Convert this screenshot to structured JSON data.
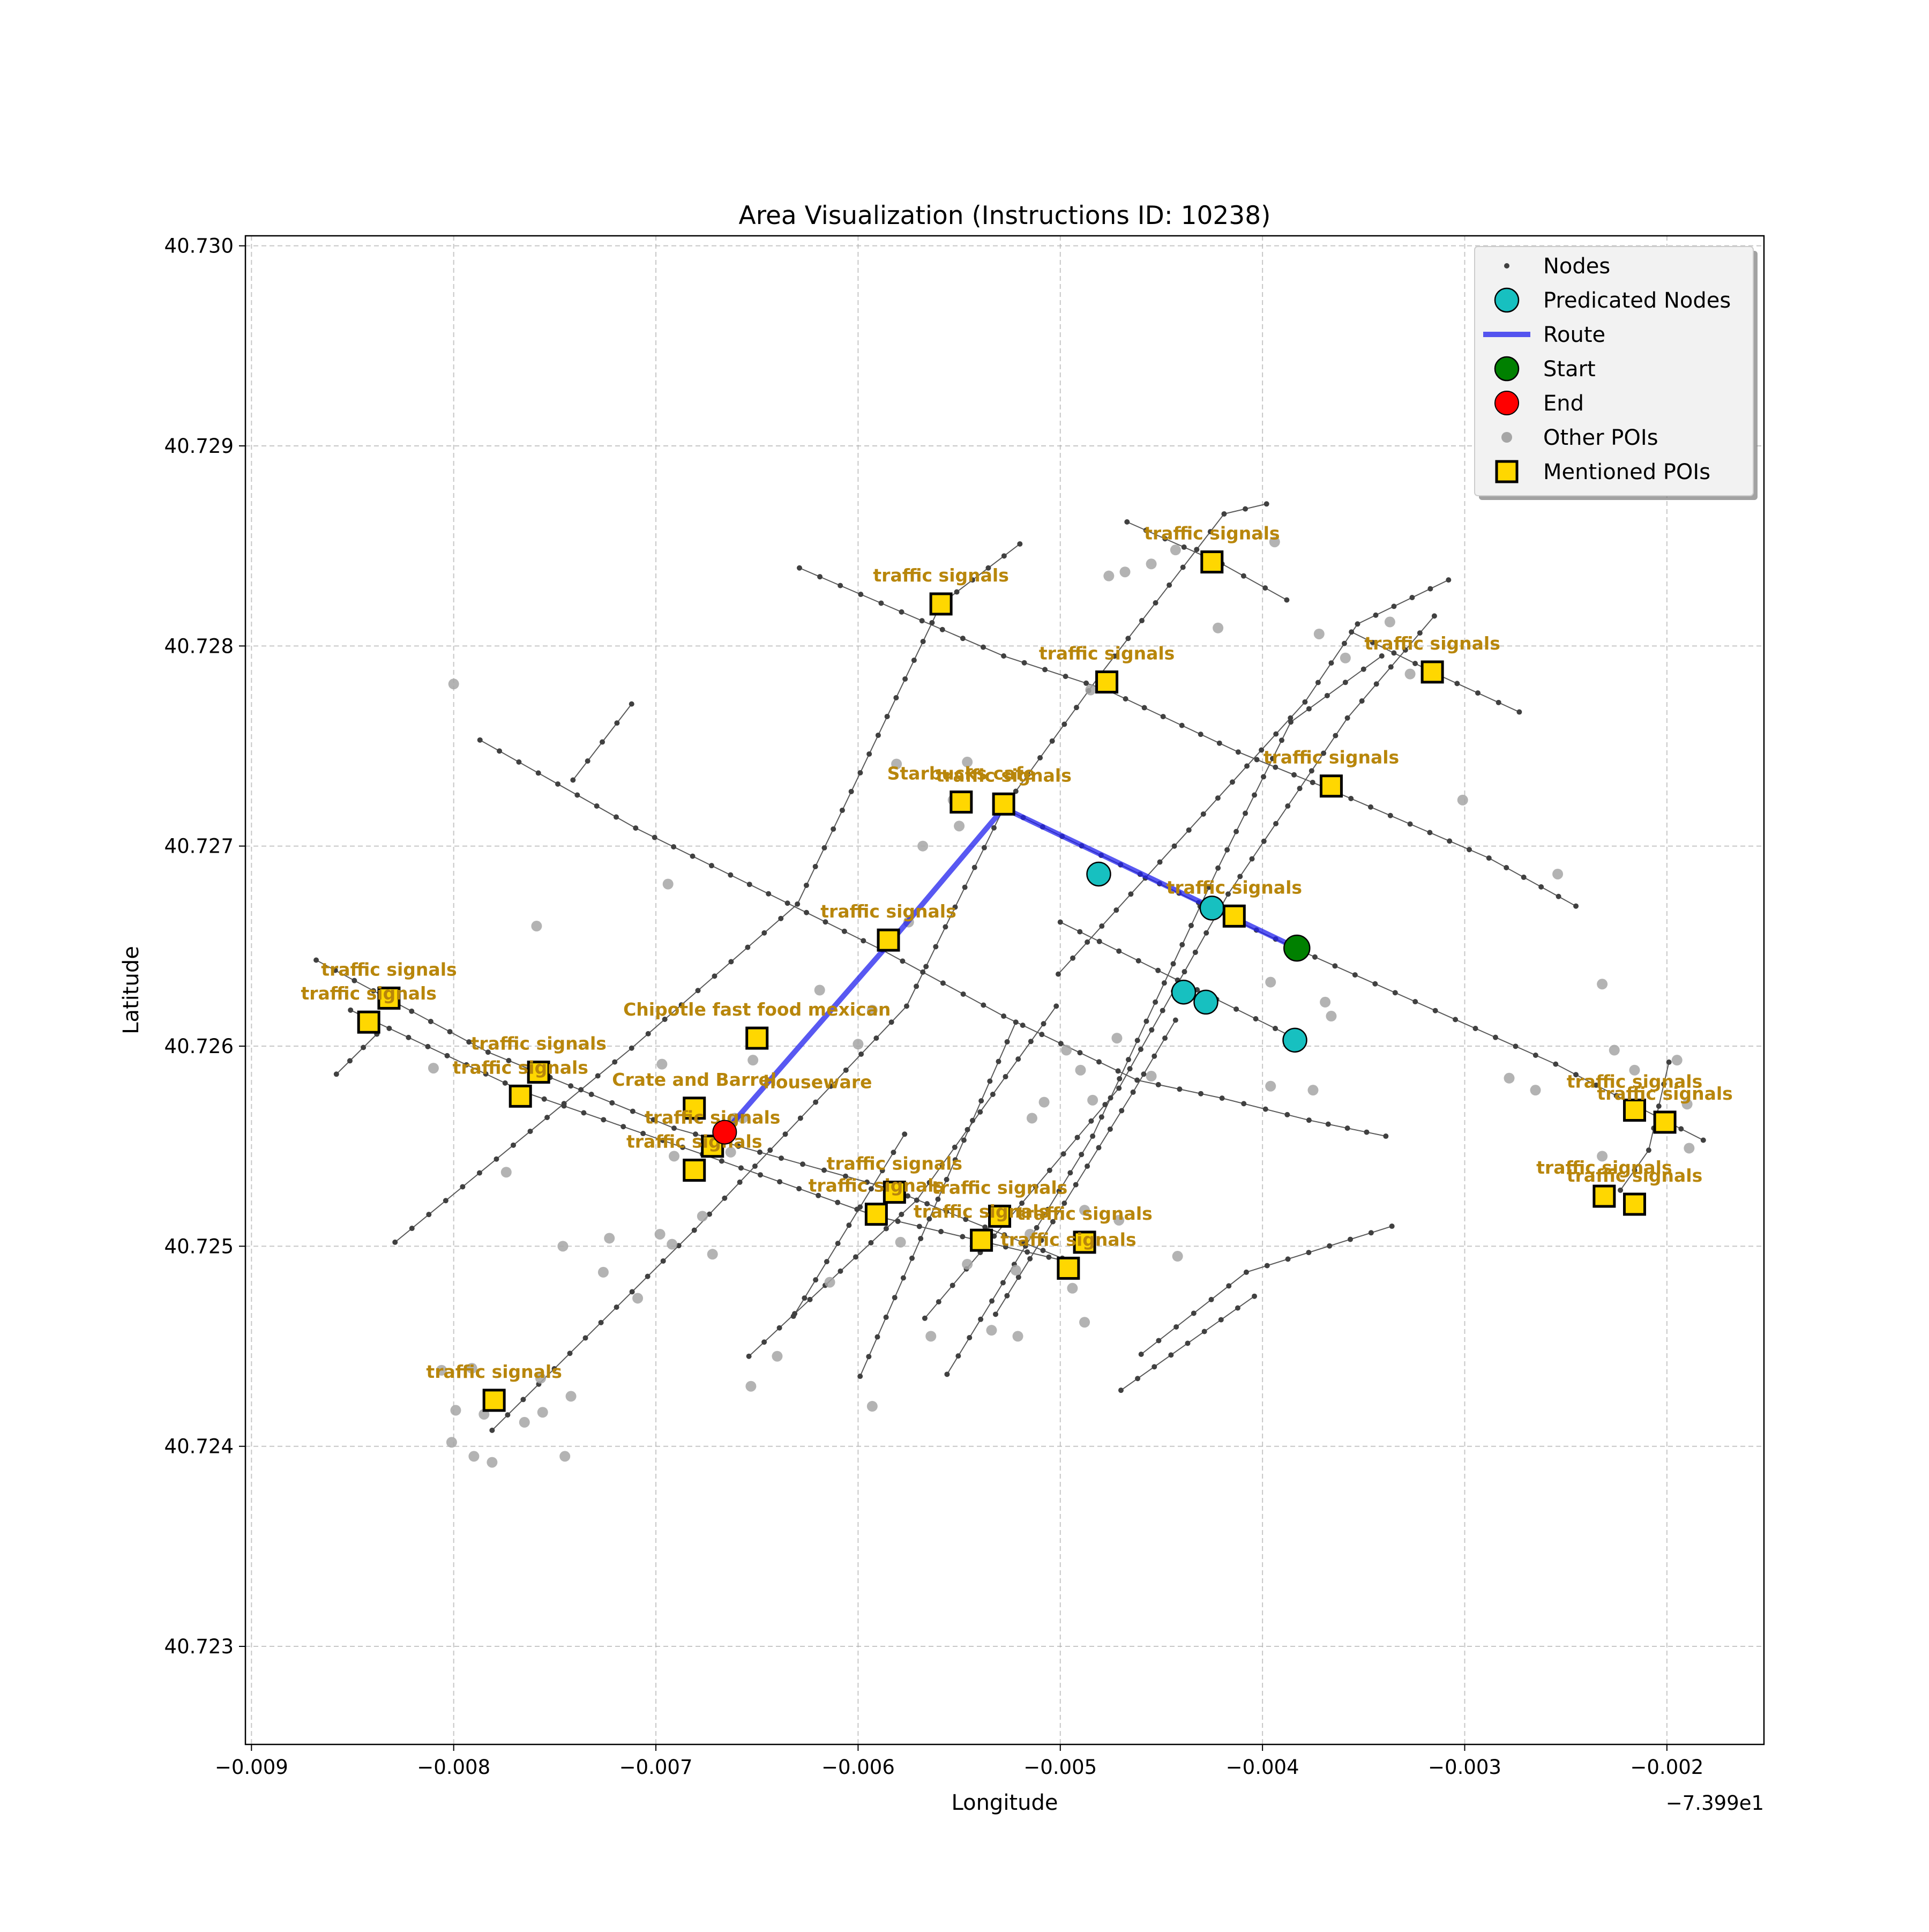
{
  "chart_data": {
    "type": "scatter",
    "title": "Area Visualization (Instructions ID: 10238)",
    "xlabel": "Longitude",
    "ylabel": "Latitude",
    "x_offset_label": "−7.399e1",
    "xlim": [
      -0.00903,
      -0.00152
    ],
    "ylim": [
      40.72251,
      40.73005
    ],
    "x_ticks": [
      -0.009,
      -0.008,
      -0.007,
      -0.006,
      -0.005,
      -0.004,
      -0.003,
      -0.002
    ],
    "x_tick_labels": [
      "−0.009",
      "−0.008",
      "−0.007",
      "−0.006",
      "−0.005",
      "−0.004",
      "−0.003",
      "−0.002"
    ],
    "y_ticks": [
      40.723,
      40.724,
      40.725,
      40.726,
      40.727,
      40.728,
      40.729,
      40.73
    ],
    "y_tick_labels": [
      "40.723",
      "40.724",
      "40.725",
      "40.726",
      "40.727",
      "40.728",
      "40.729",
      "40.730"
    ],
    "grid": true,
    "legend_position": "top-right",
    "colors": {
      "nodes": "#404040",
      "streets": "#595959",
      "predicted": "#17c0c0",
      "route": "#2020ee",
      "start": "#008000",
      "end": "#ff0000",
      "other_poi": "#a6a6a6",
      "mentioned_poi": "#ffd700",
      "poi_label": "#b8860b"
    },
    "legend": [
      {
        "key": "nodes",
        "label": "Nodes"
      },
      {
        "key": "predicted",
        "label": "Predicated Nodes"
      },
      {
        "key": "route",
        "label": "Route"
      },
      {
        "key": "start",
        "label": "Start"
      },
      {
        "key": "end",
        "label": "End"
      },
      {
        "key": "other_poi",
        "label": "Other POIs"
      },
      {
        "key": "mentioned_poi",
        "label": "Mentioned POIs"
      }
    ],
    "streets": [
      [
        [
          -0.00787,
          40.72753
        ],
        [
          -0.0071,
          40.72709
        ],
        [
          -0.00588,
          40.72648
        ],
        [
          -0.00528,
          40.72615
        ],
        [
          -0.00462,
          40.72583
        ],
        [
          -0.0042,
          40.72574
        ],
        [
          -0.00377,
          40.72563
        ],
        [
          -0.00339,
          40.72555
        ]
      ],
      [
        [
          -0.00868,
          40.72643
        ],
        [
          -0.00783,
          40.72597
        ],
        [
          -0.00691,
          40.72559
        ],
        [
          -0.00585,
          40.72529
        ],
        [
          -0.00499,
          40.72494
        ]
      ],
      [
        [
          -0.00851,
          40.72618
        ],
        [
          -0.00765,
          40.72577
        ],
        [
          -0.00677,
          40.72546
        ],
        [
          -0.00591,
          40.72515
        ],
        [
          -0.00495,
          40.72492
        ]
      ],
      [
        [
          -0.00629,
          40.72839
        ],
        [
          -0.00528,
          40.72795
        ],
        [
          -0.00477,
          40.72778
        ],
        [
          -0.00412,
          40.72747
        ],
        [
          -0.00366,
          40.72728
        ],
        [
          -0.00288,
          40.72694
        ],
        [
          -0.00245,
          40.7267
        ]
      ],
      [
        [
          -0.00467,
          40.72862
        ],
        [
          -0.0042,
          40.72841
        ],
        [
          -0.00388,
          40.72823
        ]
      ],
      [
        [
          -0.00356,
          40.72807
        ],
        [
          -0.00314,
          40.72786
        ],
        [
          -0.00273,
          40.72767
        ]
      ],
      [
        [
          -0.00528,
          40.72719
        ],
        [
          -0.00422,
          40.72667
        ],
        [
          -0.00384,
          40.72649
        ],
        [
          -0.00255,
          40.72591
        ],
        [
          -0.00215,
          40.7257
        ],
        [
          -0.00182,
          40.72553
        ]
      ],
      [
        [
          -0.005,
          40.72662
        ],
        [
          -0.00442,
          40.72633
        ],
        [
          -0.00384,
          40.72604
        ]
      ],
      [
        [
          -0.00829,
          40.72502
        ],
        [
          -0.00712,
          40.72599
        ],
        [
          -0.0063,
          40.72671
        ],
        [
          -0.00559,
          40.72821
        ],
        [
          -0.0052,
          40.72851
        ]
      ],
      [
        [
          -0.00781,
          40.72408
        ],
        [
          -0.00681,
          40.72508
        ],
        [
          -0.00576,
          40.7262
        ],
        [
          -0.00528,
          40.72719
        ],
        [
          -0.0048,
          40.72786
        ],
        [
          -0.00419,
          40.72866
        ],
        [
          -0.00398,
          40.72871
        ]
      ],
      [
        [
          -0.00556,
          40.72436
        ],
        [
          -0.00484,
          40.72555
        ],
        [
          -0.00422,
          40.72689
        ],
        [
          -0.00386,
          40.72762
        ],
        [
          -0.00341,
          40.72795
        ]
      ],
      [
        [
          -0.00567,
          40.72464
        ],
        [
          -0.00471,
          40.72579
        ],
        [
          -0.00417,
          40.72676
        ],
        [
          -0.00358,
          40.72764
        ],
        [
          -0.00315,
          40.72815
        ]
      ],
      [
        [
          -0.00654,
          40.72445
        ],
        [
          -0.00571,
          40.72523
        ],
        [
          -0.00502,
          40.7262
        ]
      ],
      [
        [
          -0.00599,
          40.72435
        ],
        [
          -0.00522,
          40.72612
        ]
      ],
      [
        [
          -0.00532,
          40.72466
        ],
        [
          -0.00464,
          40.72577
        ],
        [
          -0.00443,
          40.72613
        ]
      ],
      [
        [
          -0.00632,
          40.72465
        ],
        [
          -0.00577,
          40.72556
        ]
      ],
      [
        [
          -0.00501,
          40.72636
        ],
        [
          -0.00379,
          40.72772
        ],
        [
          -0.00353,
          40.72811
        ],
        [
          -0.00308,
          40.72833
        ]
      ],
      [
        [
          -0.00858,
          40.72586
        ],
        [
          -0.00838,
          40.72606
        ]
      ],
      [
        [
          -0.00741,
          40.72733
        ],
        [
          -0.00712,
          40.72771
        ]
      ],
      [
        [
          -0.00223,
          40.72528
        ],
        [
          -0.00209,
          40.72548
        ],
        [
          -0.00199,
          40.72592
        ]
      ],
      [
        [
          -0.0046,
          40.72446
        ],
        [
          -0.00408,
          40.72487
        ],
        [
          -0.00336,
          40.7251
        ]
      ],
      [
        [
          -0.0047,
          40.72428
        ],
        [
          -0.00404,
          40.72475
        ]
      ]
    ],
    "other_pois": [
      [
        -0.008,
        40.72781
      ],
      [
        -0.00759,
        40.7266
      ],
      [
        -0.00694,
        40.72681
      ],
      [
        -0.00697,
        40.72591
      ],
      [
        -0.00661,
        40.72564
      ],
      [
        -0.00619,
        40.72628
      ],
      [
        -0.006,
        40.72601
      ],
      [
        -0.00593,
        40.72618
      ],
      [
        -0.00575,
        40.72662
      ],
      [
        -0.00581,
        40.72741
      ],
      [
        -0.00553,
        40.72723
      ],
      [
        -0.00546,
        40.72742
      ],
      [
        -0.00568,
        40.727
      ],
      [
        -0.0055,
        40.7271
      ],
      [
        -0.00485,
        40.72778
      ],
      [
        -0.00497,
        40.72598
      ],
      [
        -0.00472,
        40.72604
      ],
      [
        -0.0049,
        40.72588
      ],
      [
        -0.00484,
        40.72573
      ],
      [
        -0.00508,
        40.72572
      ],
      [
        -0.00476,
        40.72835
      ],
      [
        -0.00468,
        40.72837
      ],
      [
        -0.00443,
        40.72848
      ],
      [
        -0.00455,
        40.72841
      ],
      [
        -0.00394,
        40.72852
      ],
      [
        -0.00422,
        40.72809
      ],
      [
        -0.00372,
        40.72806
      ],
      [
        -0.00359,
        40.72794
      ],
      [
        -0.00337,
        40.72812
      ],
      [
        -0.00327,
        40.72786
      ],
      [
        -0.00301,
        40.72723
      ],
      [
        -0.00254,
        40.72686
      ],
      [
        -0.00232,
        40.72631
      ],
      [
        -0.0081,
        40.72589
      ],
      [
        -0.00774,
        40.72537
      ],
      [
        -0.00746,
        40.725
      ],
      [
        -0.00791,
        40.72439
      ],
      [
        -0.00785,
        40.72416
      ],
      [
        -0.00778,
        40.72422
      ],
      [
        -0.00765,
        40.72412
      ],
      [
        -0.00799,
        40.72418
      ],
      [
        -0.00757,
        40.72434
      ],
      [
        -0.00742,
        40.72425
      ],
      [
        -0.00726,
        40.72487
      ],
      [
        -0.00723,
        40.72504
      ],
      [
        -0.00709,
        40.72474
      ],
      [
        -0.00692,
        40.72501
      ],
      [
        -0.00677,
        40.72515
      ],
      [
        -0.00591,
        40.72515
      ],
      [
        -0.00579,
        40.72502
      ],
      [
        -0.00546,
        40.72491
      ],
      [
        -0.00515,
        40.72506
      ],
      [
        -0.00522,
        40.72488
      ],
      [
        -0.00488,
        40.72462
      ],
      [
        -0.00494,
        40.72479
      ],
      [
        -0.00471,
        40.72513
      ],
      [
        -0.00455,
        40.72585
      ],
      [
        -0.00488,
        40.72518
      ],
      [
        -0.00514,
        40.72564
      ],
      [
        -0.00593,
        40.7242
      ],
      [
        -0.00614,
        40.72482
      ],
      [
        -0.0064,
        40.72445
      ],
      [
        -0.00653,
        40.7243
      ],
      [
        -0.00564,
        40.72455
      ],
      [
        -0.00534,
        40.72458
      ],
      [
        -0.00521,
        40.72455
      ],
      [
        -0.00442,
        40.72495
      ],
      [
        -0.00396,
        40.7258
      ],
      [
        -0.00366,
        40.72615
      ],
      [
        -0.00369,
        40.72622
      ],
      [
        -0.00396,
        40.72632
      ],
      [
        -0.00278,
        40.72584
      ],
      [
        -0.00265,
        40.72578
      ],
      [
        -0.00226,
        40.72598
      ],
      [
        -0.00216,
        40.72588
      ],
      [
        -0.00195,
        40.72593
      ],
      [
        -0.0019,
        40.72571
      ],
      [
        -0.00232,
        40.72545
      ],
      [
        -0.00189,
        40.72549
      ],
      [
        -0.00375,
        40.72578
      ],
      [
        -0.00801,
        40.72402
      ],
      [
        -0.0079,
        40.72395
      ],
      [
        -0.00781,
        40.72392
      ],
      [
        -0.00745,
        40.72395
      ],
      [
        -0.00756,
        40.72417
      ],
      [
        -0.00806,
        40.72438
      ],
      [
        -0.00691,
        40.72545
      ],
      [
        -0.0068,
        40.72565
      ],
      [
        -0.00652,
        40.72593
      ],
      [
        -0.00657,
        40.72564
      ],
      [
        -0.00663,
        40.72547
      ],
      [
        -0.00698,
        40.72506
      ],
      [
        -0.00672,
        40.72496
      ]
    ],
    "route": [
      [
        -0.00383,
        40.72649
      ],
      [
        -0.00528,
        40.72719
      ],
      [
        -0.00584,
        40.72652
      ],
      [
        -0.00666,
        40.72557
      ]
    ],
    "predicted_nodes": [
      [
        -0.00481,
        40.72686
      ],
      [
        -0.00425,
        40.72669
      ],
      [
        -0.00439,
        40.72627
      ],
      [
        -0.00428,
        40.72622
      ],
      [
        -0.00384,
        40.72603
      ]
    ],
    "start": [
      -0.00383,
      40.72649
    ],
    "end": [
      -0.00666,
      40.72557
    ],
    "mentioned_pois": [
      {
        "x": -0.00559,
        "y": 40.72821,
        "label": "traffic signals"
      },
      {
        "x": -0.00425,
        "y": 40.72842,
        "label": "traffic signals"
      },
      {
        "x": -0.00477,
        "y": 40.72782,
        "label": "traffic signals"
      },
      {
        "x": -0.00316,
        "y": 40.72787,
        "label": "traffic signals"
      },
      {
        "x": -0.00366,
        "y": 40.7273,
        "label": "traffic signals"
      },
      {
        "x": -0.00549,
        "y": 40.72722,
        "label": "Starbucks cafe"
      },
      {
        "x": -0.00528,
        "y": 40.72721,
        "label": "traffic signals"
      },
      {
        "x": -0.00414,
        "y": 40.72665,
        "label": "traffic signals"
      },
      {
        "x": -0.00585,
        "y": 40.72653,
        "label": "traffic signals"
      },
      {
        "x": -0.00832,
        "y": 40.72624,
        "label": "traffic signals"
      },
      {
        "x": -0.00842,
        "y": 40.72612,
        "label": "traffic signals"
      },
      {
        "x": -0.0065,
        "y": 40.72604,
        "label": "Chipotle fast food mexican"
      },
      {
        "x": -0.00758,
        "y": 40.72587,
        "label": "traffic signals"
      },
      {
        "x": -0.00767,
        "y": 40.72575,
        "label": "traffic signals"
      },
      {
        "x": -0.00681,
        "y": 40.72569,
        "label": "Crate and Barrel"
      },
      {
        "x": -0.00672,
        "y": 40.7255,
        "label": "traffic signals"
      },
      {
        "x": -0.00681,
        "y": 40.72538,
        "label": "traffic signals"
      },
      {
        "x": -0.00582,
        "y": 40.72527,
        "label": "traffic signals"
      },
      {
        "x": -0.00591,
        "y": 40.72516,
        "label": "traffic signals"
      },
      {
        "x": -0.0053,
        "y": 40.72515,
        "label": "traffic signals"
      },
      {
        "x": -0.00539,
        "y": 40.72503,
        "label": "traffic signals"
      },
      {
        "x": -0.00488,
        "y": 40.72502,
        "label": "traffic signals"
      },
      {
        "x": -0.00496,
        "y": 40.72489,
        "label": "traffic signals"
      },
      {
        "x": -0.00216,
        "y": 40.72568,
        "label": "traffic signals"
      },
      {
        "x": -0.00201,
        "y": 40.72562,
        "label": "traffic signals"
      },
      {
        "x": -0.00231,
        "y": 40.72525,
        "label": "traffic signals"
      },
      {
        "x": -0.00216,
        "y": 40.72521,
        "label": "traffic signals"
      },
      {
        "x": -0.0078,
        "y": 40.72423,
        "label": "traffic signals"
      }
    ],
    "extra_labels": [
      {
        "x": -0.0062,
        "y": 40.72579,
        "label": "houseware"
      }
    ]
  }
}
